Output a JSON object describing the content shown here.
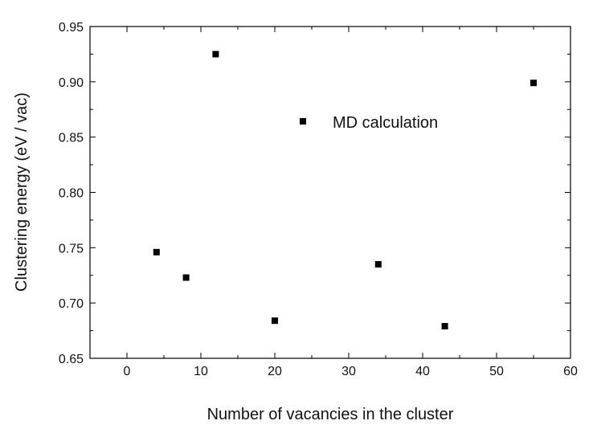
{
  "chart_data": {
    "type": "scatter",
    "xlabel": "Number of vacancies in the cluster",
    "ylabel": "Clustering energy (eV / vac)",
    "xlim": [
      -5,
      60
    ],
    "ylim": [
      0.65,
      0.95
    ],
    "x_ticks": [
      0,
      10,
      20,
      30,
      40,
      50,
      60
    ],
    "y_ticks": [
      0.65,
      0.7,
      0.75,
      0.8,
      0.85,
      0.9,
      0.95
    ],
    "x_tick_labels": [
      "0",
      "10",
      "20",
      "30",
      "40",
      "50",
      "60"
    ],
    "y_tick_labels": [
      "0.65",
      "0.70",
      "0.75",
      "0.80",
      "0.85",
      "0.90",
      "0.95"
    ],
    "grid": false,
    "legend_position": "upper-center",
    "series": [
      {
        "name": "MD calculation",
        "marker": "square",
        "color": "#000000",
        "points": [
          {
            "x": 4,
            "y": 0.746
          },
          {
            "x": 8,
            "y": 0.723
          },
          {
            "x": 12,
            "y": 0.925
          },
          {
            "x": 20,
            "y": 0.684
          },
          {
            "x": 34,
            "y": 0.735
          },
          {
            "x": 43,
            "y": 0.679
          },
          {
            "x": 55,
            "y": 0.899
          }
        ]
      }
    ]
  }
}
